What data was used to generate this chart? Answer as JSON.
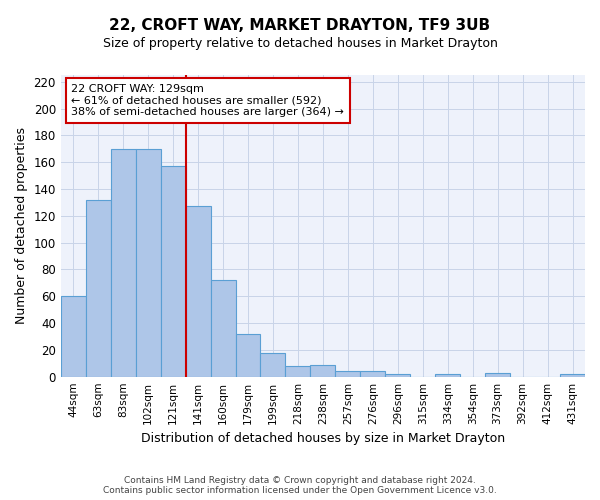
{
  "title": "22, CROFT WAY, MARKET DRAYTON, TF9 3UB",
  "subtitle": "Size of property relative to detached houses in Market Drayton",
  "xlabel": "Distribution of detached houses by size in Market Drayton",
  "ylabel": "Number of detached properties",
  "categories": [
    "44sqm",
    "63sqm",
    "83sqm",
    "102sqm",
    "121sqm",
    "141sqm",
    "160sqm",
    "179sqm",
    "199sqm",
    "218sqm",
    "238sqm",
    "257sqm",
    "276sqm",
    "296sqm",
    "315sqm",
    "334sqm",
    "354sqm",
    "373sqm",
    "392sqm",
    "412sqm",
    "431sqm"
  ],
  "values": [
    60,
    132,
    170,
    170,
    157,
    127,
    72,
    32,
    18,
    8,
    9,
    4,
    4,
    2,
    0,
    2,
    0,
    3,
    0,
    0,
    2
  ],
  "bar_color": "#aec6e8",
  "bar_edge_color": "#5a9fd4",
  "vline_x": 4.5,
  "vline_color": "#cc0000",
  "annotation_text": "22 CROFT WAY: 129sqm\n← 61% of detached houses are smaller (592)\n38% of semi-detached houses are larger (364) →",
  "annotation_box_color": "#ffffff",
  "annotation_box_edge": "#cc0000",
  "annotation_fontsize": 8.0,
  "ylim": [
    0,
    225
  ],
  "yticks": [
    0,
    20,
    40,
    60,
    80,
    100,
    120,
    140,
    160,
    180,
    200,
    220
  ],
  "footer_line1": "Contains HM Land Registry data © Crown copyright and database right 2024.",
  "footer_line2": "Contains public sector information licensed under the Open Government Licence v3.0.",
  "bg_color": "#eef2fb",
  "grid_color": "#c8d4e8",
  "title_fontsize": 11,
  "subtitle_fontsize": 9,
  "ylabel_fontsize": 9,
  "xlabel_fontsize": 9
}
